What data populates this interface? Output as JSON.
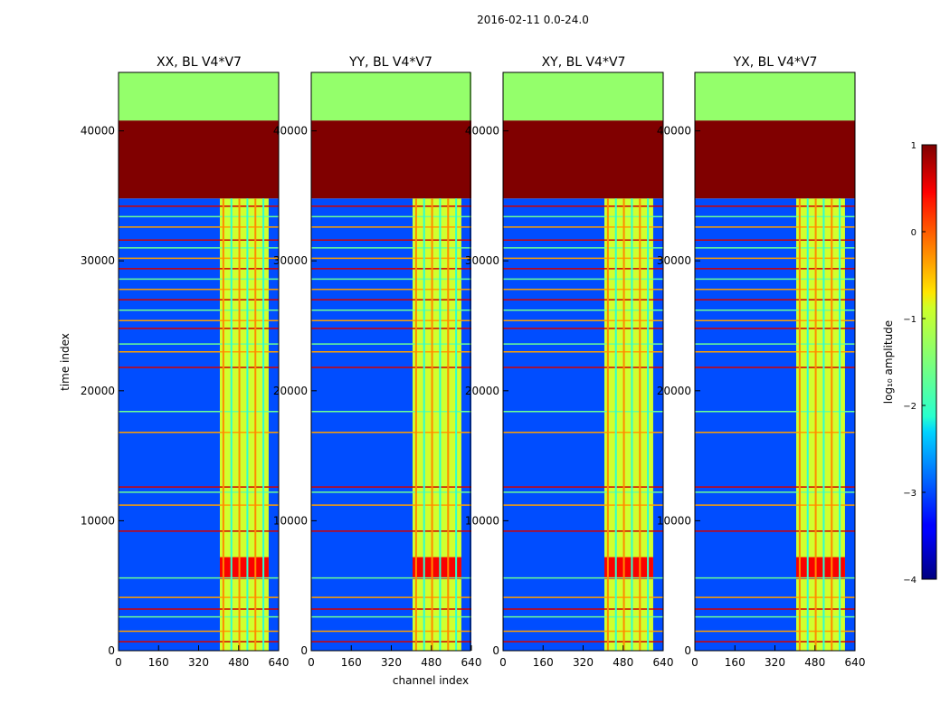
{
  "chart_data": {
    "type": "heatmap",
    "title": "2016-02-11 0.0-24.0",
    "xlabel": "channel index",
    "ylabel": "time index",
    "xlim": [
      0,
      640
    ],
    "ylim": [
      0,
      44500
    ],
    "xticks": [
      "0",
      "160",
      "320",
      "480",
      "640"
    ],
    "xtick_values": [
      0,
      160,
      320,
      480,
      640
    ],
    "yticks": [
      "0",
      "10000",
      "20000",
      "30000",
      "40000"
    ],
    "ytick_values": [
      0,
      10000,
      20000,
      30000,
      40000
    ],
    "panels": [
      {
        "title": "XX, BL V4*V7",
        "pol": "XX"
      },
      {
        "title": "YY, BL V4*V7",
        "pol": "YY"
      },
      {
        "title": "XY, BL V4*V7",
        "pol": "XY"
      },
      {
        "title": "YX, BL V4*V7",
        "pol": "YX"
      }
    ],
    "colorbar": {
      "label": "log₁₀ amplitude",
      "range": [
        -4,
        1
      ],
      "ticks": [
        "1",
        "0",
        "−1",
        "−2",
        "−3",
        "−4"
      ],
      "tick_values": [
        1,
        0,
        -1,
        -2,
        -3,
        -4
      ],
      "colormap": "jet"
    },
    "features": {
      "saturated_time_band": {
        "from": 34800,
        "to": 40800,
        "log_amp": 1.0
      },
      "top_band": {
        "from": 40800,
        "to": 44500,
        "log_amp": -1.4
      },
      "rfi_channel_band": {
        "from": 405,
        "to": 600,
        "log_amp": -1.1
      },
      "background_log_amp": -3.0,
      "hot_spot": {
        "time_from": 5500,
        "time_to": 7200,
        "log_amp": 0.4
      },
      "horizontal_flag_rows": [
        700,
        1500,
        2600,
        3200,
        4100,
        5600,
        9200,
        11200,
        12200,
        12600,
        16800,
        18400,
        21800,
        23000,
        23600,
        24800,
        25400,
        26200,
        27000,
        27800,
        28600,
        29400,
        30200,
        31000,
        31600,
        32600,
        33400,
        34200
      ]
    }
  }
}
